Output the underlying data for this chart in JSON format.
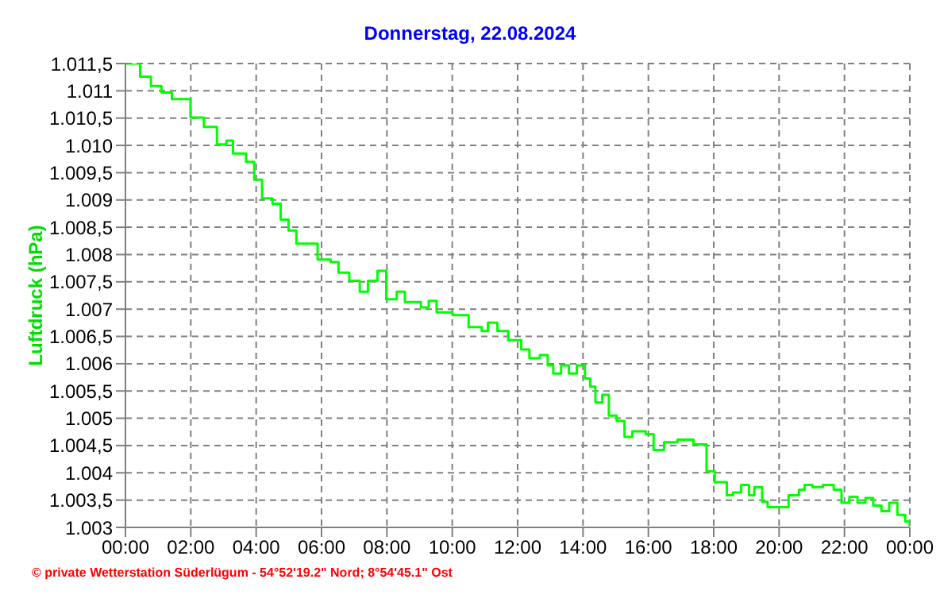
{
  "chart_data": {
    "type": "step",
    "title": "Donnerstag, 22.08.2024",
    "ylabel": "Luftdruck (hPa)",
    "annotations": [
      "© private Wetterstation Süderlügum - 54°52'19.2\" Nord; 8°54'45.1\" Ost"
    ],
    "x": [
      0,
      0.45,
      0.78,
      1.1,
      1.42,
      1.99,
      2.4,
      2.8,
      3.09,
      3.29,
      3.69,
      3.94,
      4.18,
      4.5,
      4.75,
      4.99,
      5.23,
      5.56,
      5.88,
      6.28,
      6.52,
      6.85,
      7.17,
      7.42,
      7.71,
      7.98,
      8.3,
      8.55,
      9.04,
      9.28,
      9.52,
      10.01,
      10.5,
      10.9,
      11.09,
      11.38,
      11.71,
      12.11,
      12.36,
      12.68,
      12.92,
      13.09,
      13.33,
      13.57,
      13.81,
      14.06,
      14.22,
      14.38,
      14.59,
      14.79,
      15.03,
      15.27,
      15.51,
      15.92,
      16.16,
      16.48,
      16.89,
      17.38,
      17.78,
      18.03,
      18.4,
      18.59,
      18.84,
      19.08,
      19.24,
      19.48,
      19.65,
      20.08,
      20.29,
      20.61,
      20.78,
      21.02,
      21.34,
      21.67,
      21.91,
      22.15,
      22.4,
      22.64,
      22.88,
      23.13,
      23.37,
      23.62,
      23.86,
      24
    ],
    "series": [
      {
        "color": "#00ff00",
        "values": [
          1011.5,
          1011.26,
          1011.09,
          1010.97,
          1010.85,
          1010.51,
          1010.34,
          1010.02,
          1010.09,
          1009.85,
          1009.7,
          1009.37,
          1009.03,
          1008.93,
          1008.64,
          1008.44,
          1008.2,
          1008.2,
          1007.91,
          1007.86,
          1007.67,
          1007.52,
          1007.32,
          1007.52,
          1007.7,
          1007.18,
          1007.32,
          1007.13,
          1007.03,
          1007.15,
          1006.94,
          1006.89,
          1006.67,
          1006.6,
          1006.75,
          1006.6,
          1006.43,
          1006.26,
          1006.1,
          1006.16,
          1005.97,
          1005.82,
          1005.97,
          1005.82,
          1005.97,
          1005.73,
          1005.58,
          1005.29,
          1005.43,
          1005.05,
          1004.95,
          1004.66,
          1004.76,
          1004.71,
          1004.42,
          1004.56,
          1004.61,
          1004.52,
          1004.03,
          1003.83,
          1003.59,
          1003.64,
          1003.78,
          1003.59,
          1003.74,
          1003.47,
          1003.37,
          1003.37,
          1003.59,
          1003.69,
          1003.78,
          1003.74,
          1003.78,
          1003.69,
          1003.45,
          1003.56,
          1003.45,
          1003.54,
          1003.4,
          1003.3,
          1003.45,
          1003.23,
          1003.11,
          1003.01
        ]
      }
    ],
    "xlim": [
      0,
      24
    ],
    "xticks": [
      {
        "value": 0,
        "label": "00:00"
      },
      {
        "value": 2,
        "label": "02:00"
      },
      {
        "value": 4,
        "label": "04:00"
      },
      {
        "value": 6,
        "label": "06:00"
      },
      {
        "value": 8,
        "label": "08:00"
      },
      {
        "value": 10,
        "label": "10:00"
      },
      {
        "value": 12,
        "label": "12:00"
      },
      {
        "value": 14,
        "label": "14:00"
      },
      {
        "value": 16,
        "label": "16:00"
      },
      {
        "value": 18,
        "label": "18:00"
      },
      {
        "value": 20,
        "label": "20:00"
      },
      {
        "value": 22,
        "label": "22:00"
      },
      {
        "value": 24,
        "label": "00:00"
      }
    ],
    "ylim": [
      1003,
      1011.5
    ],
    "yticks": [
      {
        "value": 1003,
        "label": "1.003"
      },
      {
        "value": 1003.5,
        "label": "1.003,5"
      },
      {
        "value": 1004,
        "label": "1.004"
      },
      {
        "value": 1004.5,
        "label": "1.004,5"
      },
      {
        "value": 1005,
        "label": "1.005"
      },
      {
        "value": 1005.5,
        "label": "1.005,5"
      },
      {
        "value": 1006,
        "label": "1.006"
      },
      {
        "value": 1006.5,
        "label": "1.006,5"
      },
      {
        "value": 1007,
        "label": "1.007"
      },
      {
        "value": 1007.5,
        "label": "1.007,5"
      },
      {
        "value": 1008,
        "label": "1.008"
      },
      {
        "value": 1008.5,
        "label": "1.008,5"
      },
      {
        "value": 1009,
        "label": "1.009"
      },
      {
        "value": 1009.5,
        "label": "1.009,5"
      },
      {
        "value": 1010,
        "label": "1.010"
      },
      {
        "value": 1010.5,
        "label": "1.010,5"
      },
      {
        "value": 1011,
        "label": "1.011"
      },
      {
        "value": 1011.5,
        "label": "1.011,5"
      }
    ],
    "grid": true,
    "legend": false,
    "marker": "none",
    "line_style": "solid"
  }
}
